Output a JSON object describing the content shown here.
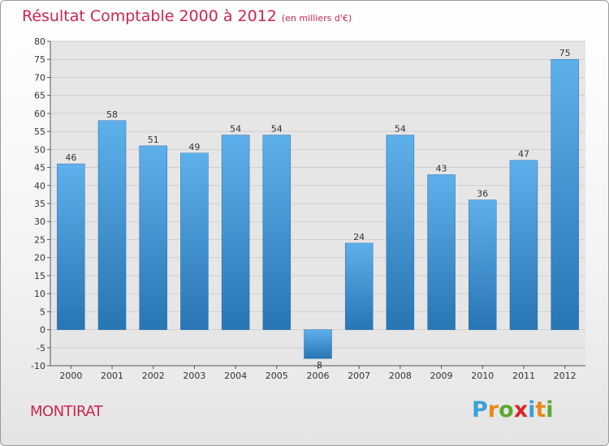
{
  "title": "Résultat Comptable 2000 à 2012",
  "subtitle": "(en milliers d'€)",
  "town": "MONTIRAT",
  "brand": {
    "letters": [
      {
        "ch": "P",
        "color": "#3aa0d8"
      },
      {
        "ch": "r",
        "color": "#e88a1a"
      },
      {
        "ch": "o",
        "color": "#5aa832"
      },
      {
        "ch": "x",
        "color": "#d9262a"
      },
      {
        "ch": "i",
        "color": "#3aa0d8"
      },
      {
        "ch": "t",
        "color": "#e88a1a"
      },
      {
        "ch": "i",
        "color": "#5aa832"
      }
    ]
  },
  "colors": {
    "title": "#c8274f",
    "bar": "#3d92d1",
    "bar_light": "#5eb0ea",
    "bar_dark": "#2875b4",
    "grid": "#cfcfcf",
    "plot_bg": "#e6e6e6"
  },
  "chart_data": {
    "type": "bar",
    "categories": [
      "2000",
      "2001",
      "2002",
      "2003",
      "2004",
      "2005",
      "2006",
      "2007",
      "2008",
      "2009",
      "2010",
      "2011",
      "2012"
    ],
    "values": [
      46,
      58,
      51,
      49,
      54,
      54,
      -8,
      24,
      54,
      43,
      36,
      47,
      75
    ],
    "ylim": [
      -10,
      80
    ],
    "yticks": [
      -10,
      -5,
      0,
      5,
      10,
      15,
      20,
      25,
      30,
      35,
      40,
      45,
      50,
      55,
      60,
      65,
      70,
      75,
      80
    ],
    "grid": true
  }
}
